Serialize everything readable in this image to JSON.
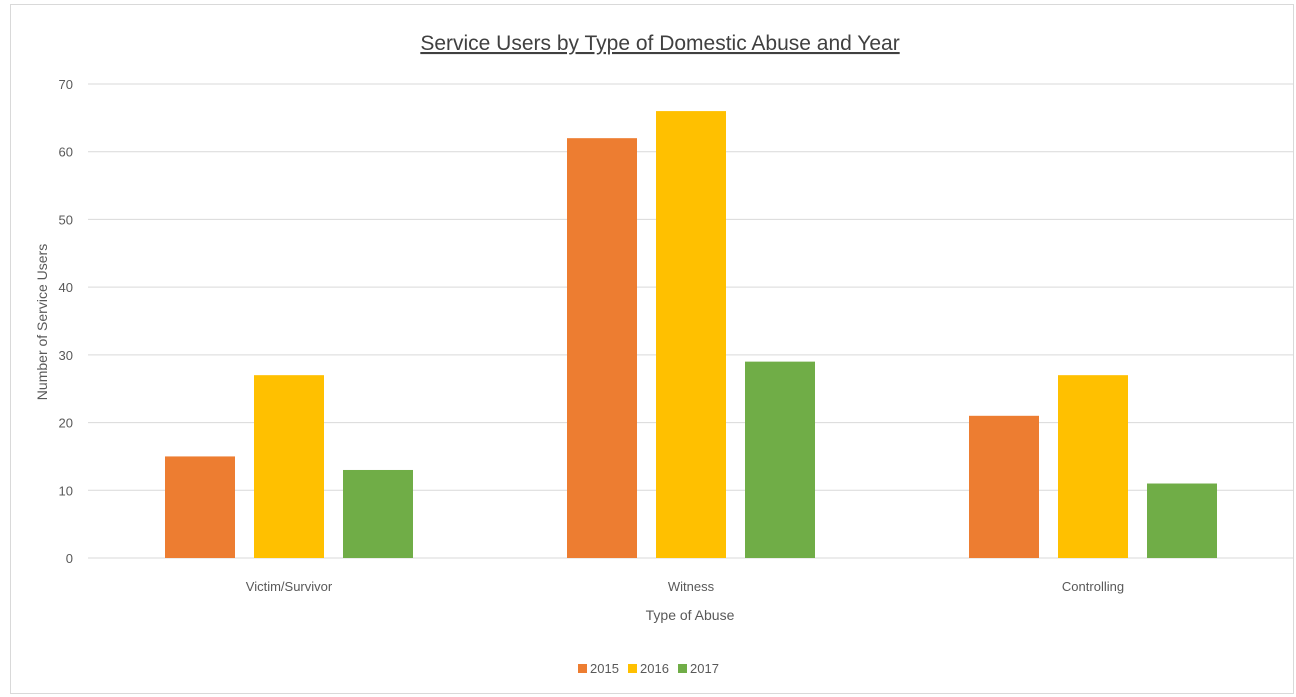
{
  "chart_data": {
    "type": "bar",
    "title": "Service Users by Type of Domestic Abuse and Year",
    "xlabel": "Type of Abuse",
    "ylabel": "Number of Service Users",
    "categories": [
      "Victim/Survivor",
      "Witness",
      "Controlling"
    ],
    "series": [
      {
        "name": "2015",
        "color": "#ED7D31",
        "values": [
          15,
          62,
          21
        ]
      },
      {
        "name": "2016",
        "color": "#FFC000",
        "values": [
          27,
          66,
          27
        ]
      },
      {
        "name": "2017",
        "color": "#70AD47",
        "values": [
          13,
          29,
          11
        ]
      }
    ],
    "ylim": [
      0,
      70
    ],
    "yticks": [
      0,
      10,
      20,
      30,
      40,
      50,
      60,
      70
    ],
    "grid": true,
    "legend": "bottom-center"
  }
}
